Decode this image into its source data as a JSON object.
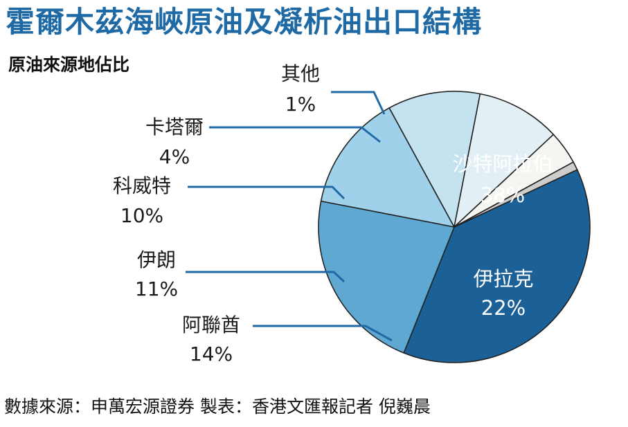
{
  "header": {
    "title": "霍爾木茲海峽原油及凝析油出口結構",
    "subtitle": "原油來源地佔比"
  },
  "footer": {
    "source": "數據來源：申萬宏源證券 製表：香港文匯報記者  倪巍晨"
  },
  "chart_data": {
    "type": "pie",
    "title": "霍爾木茲海峽原油及凝析油出口結構",
    "subtitle": "原油來源地佔比",
    "slices": [
      {
        "label": "沙特阿拉伯",
        "value": 38,
        "value_label": "38%",
        "color": "#1b6197"
      },
      {
        "label": "伊拉克",
        "value": 22,
        "value_label": "22%",
        "color": "#5ea8d2"
      },
      {
        "label": "阿聯酋",
        "value": 14,
        "value_label": "14%",
        "color": "#9fd1ea"
      },
      {
        "label": "伊朗",
        "value": 11,
        "value_label": "11%",
        "color": "#c4e2ef"
      },
      {
        "label": "科威特",
        "value": 10,
        "value_label": "10%",
        "color": "#e2eff5"
      },
      {
        "label": "卡塔爾",
        "value": 4,
        "value_label": "4%",
        "color": "#f5f6f2"
      },
      {
        "label": "其他",
        "value": 1,
        "value_label": "1%",
        "color": "#cdcdcd"
      }
    ],
    "leader_color": "#1f6aa5"
  }
}
